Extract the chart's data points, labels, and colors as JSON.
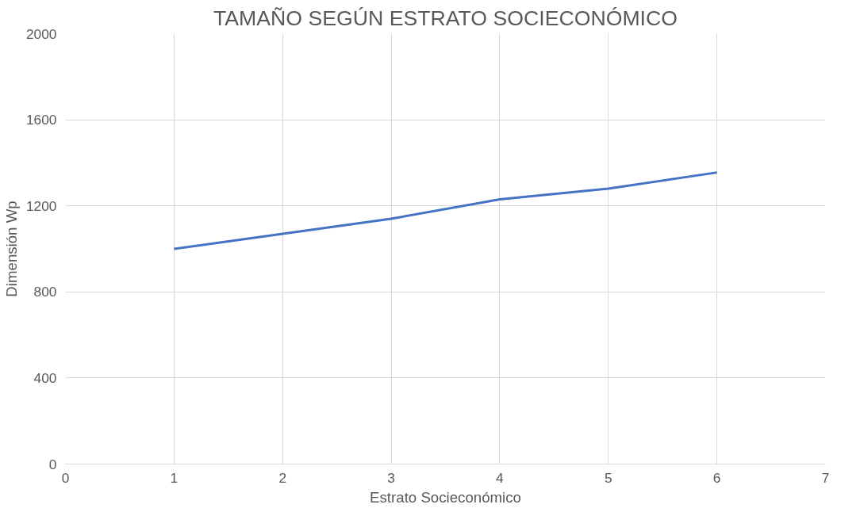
{
  "chart_data": {
    "type": "line",
    "title": "TAMAÑO SEGÚN ESTRATO SOCIECONÓMICO",
    "xlabel": "Estrato Socieconómico",
    "ylabel": "Dimensión Wp",
    "x": [
      1,
      2,
      3,
      4,
      5,
      6
    ],
    "series": [
      {
        "color": "#4472c4",
        "values": [
          1000,
          1070,
          1140,
          1230,
          1280,
          1355
        ]
      }
    ],
    "xlim": [
      0,
      7
    ],
    "xticks": [
      0,
      1,
      2,
      3,
      4,
      5,
      6,
      7
    ],
    "ylim": [
      0,
      2000
    ],
    "yticks": [
      0,
      400,
      800,
      1200,
      1600,
      2000
    ],
    "grid": true,
    "marker": "none",
    "line_style": "solid"
  }
}
